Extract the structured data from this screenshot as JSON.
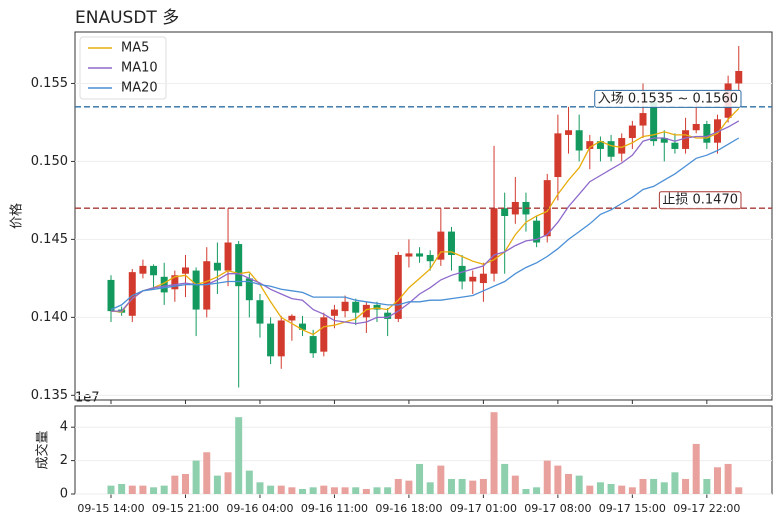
{
  "chart_data": [
    {
      "type": "candlestick",
      "title": "ENAUSDT  多",
      "ylabel": "价格",
      "categories": [
        "09-15 14:00",
        null,
        null,
        null,
        null,
        null,
        null,
        "09-15 21:00",
        null,
        null,
        null,
        null,
        null,
        null,
        "09-16 04:00",
        null,
        null,
        null,
        null,
        null,
        null,
        "09-16 11:00",
        null,
        null,
        null,
        null,
        null,
        null,
        "09-16 18:00",
        null,
        null,
        null,
        null,
        null,
        null,
        "09-17 01:00",
        null,
        null,
        null,
        null,
        null,
        null,
        "09-17 08:00",
        null,
        null,
        null,
        null,
        null,
        null,
        "09-17 15:00",
        null,
        null,
        null,
        null,
        null,
        null,
        "09-17 22:00",
        null,
        null,
        null
      ],
      "open": [
        0.1424,
        0.1405,
        0.1401,
        0.1428,
        0.1433,
        0.1426,
        0.1418,
        0.1428,
        0.143,
        0.1405,
        0.1435,
        0.143,
        0.1447,
        0.1425,
        0.1411,
        0.1396,
        0.1375,
        0.1398,
        0.1396,
        0.1388,
        0.1378,
        0.1401,
        0.1404,
        0.141,
        0.14,
        0.1408,
        0.1403,
        0.1399,
        0.1439,
        0.1441,
        0.144,
        0.1437,
        0.1455,
        0.1433,
        0.1423,
        0.1422,
        0.1428,
        0.147,
        0.1466,
        0.1474,
        0.1462,
        0.1452,
        0.149,
        0.1517,
        0.152,
        0.1508,
        0.1513,
        0.1513,
        0.1505,
        0.1515,
        0.1523,
        0.1538,
        0.1515,
        0.1512,
        0.1508,
        0.152,
        0.1524,
        0.1512,
        0.1528,
        0.155
      ],
      "high": [
        0.1427,
        0.1407,
        0.1431,
        0.1437,
        0.1434,
        0.1435,
        0.143,
        0.144,
        0.1432,
        0.1445,
        0.1448,
        0.147,
        0.1449,
        0.1428,
        0.1415,
        0.14,
        0.1401,
        0.1402,
        0.1401,
        0.1392,
        0.1403,
        0.1408,
        0.1414,
        0.1412,
        0.141,
        0.141,
        0.1406,
        0.1442,
        0.145,
        0.1445,
        0.1443,
        0.147,
        0.1458,
        0.144,
        0.143,
        0.1435,
        0.151,
        0.148,
        0.149,
        0.148,
        0.1465,
        0.1492,
        0.153,
        0.1535,
        0.153,
        0.1517,
        0.1516,
        0.1517,
        0.1518,
        0.1526,
        0.155,
        0.1542,
        0.152,
        0.1518,
        0.1528,
        0.1538,
        0.1526,
        0.153,
        0.1555,
        0.1574
      ],
      "low": [
        0.1397,
        0.1401,
        0.1397,
        0.1425,
        0.1418,
        0.1408,
        0.141,
        0.1413,
        0.1388,
        0.14,
        0.1415,
        0.142,
        0.1355,
        0.14,
        0.1387,
        0.137,
        0.1367,
        0.1385,
        0.1388,
        0.1374,
        0.1375,
        0.1393,
        0.14,
        0.1395,
        0.139,
        0.1397,
        0.1388,
        0.1397,
        0.1432,
        0.1435,
        0.143,
        0.1433,
        0.143,
        0.1418,
        0.1415,
        0.141,
        0.1423,
        0.1428,
        0.146,
        0.1455,
        0.1445,
        0.1448,
        0.1475,
        0.1505,
        0.15,
        0.1495,
        0.15,
        0.15,
        0.15,
        0.1508,
        0.1515,
        0.151,
        0.15,
        0.1505,
        0.1505,
        0.1518,
        0.1508,
        0.1505,
        0.1525,
        0.1545
      ],
      "close": [
        0.1404,
        0.1403,
        0.1429,
        0.1433,
        0.1427,
        0.1416,
        0.1427,
        0.1432,
        0.1405,
        0.1436,
        0.143,
        0.1448,
        0.142,
        0.1411,
        0.1396,
        0.1375,
        0.1398,
        0.1401,
        0.1392,
        0.1377,
        0.14,
        0.1405,
        0.141,
        0.1403,
        0.1408,
        0.1405,
        0.1399,
        0.144,
        0.1441,
        0.1439,
        0.1436,
        0.1455,
        0.144,
        0.1423,
        0.1426,
        0.1428,
        0.147,
        0.1465,
        0.1474,
        0.1466,
        0.1448,
        0.1488,
        0.1518,
        0.152,
        0.1507,
        0.1513,
        0.1508,
        0.1503,
        0.1515,
        0.1523,
        0.1531,
        0.1513,
        0.1512,
        0.1508,
        0.152,
        0.1524,
        0.1512,
        0.1527,
        0.155,
        0.1558
      ],
      "up_color": "#d23a2e",
      "down_color": "#13995e",
      "series": [
        {
          "name": "MA5",
          "color": "#e8ad0c",
          "values": [
            0.1404,
            0.14035,
            0.1412,
            0.1417,
            0.1419,
            0.1422,
            0.1426,
            0.1427,
            0.1421,
            0.1423,
            0.1426,
            0.143,
            0.1428,
            0.1429,
            0.1421,
            0.141,
            0.14,
            0.1396,
            0.1392,
            0.1389,
            0.1394,
            0.1395,
            0.1397,
            0.1399,
            0.1405,
            0.1406,
            0.1405,
            0.1411,
            0.1419,
            0.1425,
            0.1431,
            0.1442,
            0.1442,
            0.1439,
            0.1436,
            0.1434,
            0.1437,
            0.1442,
            0.1453,
            0.1461,
            0.1465,
            0.1468,
            0.1479,
            0.1488,
            0.1496,
            0.1509,
            0.1513,
            0.151,
            0.1509,
            0.1512,
            0.1516,
            0.1517,
            0.1519,
            0.1517,
            0.1517,
            0.1515,
            0.1515,
            0.1518,
            0.1527,
            0.1534
          ]
        },
        {
          "name": "MA10",
          "color": "#8e6acb",
          "values": [
            0.1404,
            0.1404,
            0.1412,
            0.1417,
            0.1419,
            0.142,
            0.1421,
            0.1422,
            0.1421,
            0.1421,
            0.1424,
            0.1428,
            0.1428,
            0.1425,
            0.1422,
            0.1418,
            0.1415,
            0.1412,
            0.1411,
            0.1405,
            0.1402,
            0.1398,
            0.1397,
            0.1396,
            0.1397,
            0.14,
            0.14,
            0.1404,
            0.1409,
            0.1415,
            0.1419,
            0.1424,
            0.1427,
            0.1429,
            0.1431,
            0.1433,
            0.144,
            0.1442,
            0.1446,
            0.1449,
            0.145,
            0.1453,
            0.1461,
            0.1471,
            0.1479,
            0.1487,
            0.1491,
            0.1495,
            0.1499,
            0.1504,
            0.1513,
            0.1515,
            0.1515,
            0.1513,
            0.1515,
            0.1516,
            0.1516,
            0.1519,
            0.1522,
            0.1526
          ]
        },
        {
          "name": "MA20",
          "color": "#4a8fd6",
          "values": [
            0.1405,
            0.1408,
            0.1414,
            0.1417,
            0.1418,
            0.1419,
            0.142,
            0.1421,
            0.1421,
            0.1421,
            0.1422,
            0.1423,
            0.1423,
            0.1423,
            0.1421,
            0.142,
            0.1418,
            0.1417,
            0.1416,
            0.1413,
            0.1413,
            0.1413,
            0.1413,
            0.1411,
            0.141,
            0.1409,
            0.1408,
            0.1408,
            0.141,
            0.141,
            0.1411,
            0.1411,
            0.1412,
            0.1413,
            0.1414,
            0.1417,
            0.142,
            0.1423,
            0.1428,
            0.1432,
            0.1435,
            0.1439,
            0.1444,
            0.145,
            0.1455,
            0.146,
            0.1466,
            0.1469,
            0.1473,
            0.1477,
            0.1482,
            0.1484,
            0.1488,
            0.1492,
            0.1497,
            0.1502,
            0.1504,
            0.1507,
            0.1511,
            0.1515
          ]
        }
      ],
      "annotations": [
        {
          "label": "入场 0.1535 ~ 0.1560",
          "value": 0.1535,
          "color": "#2e6da4"
        },
        {
          "label": "止损 0.1470",
          "value": 0.147,
          "color": "#a83a36"
        }
      ],
      "ylim": [
        0.1347,
        0.1583
      ],
      "yticks": [
        0.135,
        {
          "value": 0.14,
          "label": "0.140"
        },
        0.145,
        {
          "value": 0.15,
          "label": "0.150"
        },
        0.155
      ],
      "grid": true,
      "legend": "upper left"
    },
    {
      "type": "bar",
      "ylabel": "成交量",
      "unit_label": "1e7",
      "values": [
        0.5,
        0.6,
        0.5,
        0.5,
        0.4,
        0.5,
        1.1,
        1.2,
        2.0,
        2.5,
        1.1,
        1.3,
        4.6,
        1.4,
        0.7,
        0.5,
        0.5,
        0.4,
        0.3,
        0.4,
        0.5,
        0.4,
        0.4,
        0.4,
        0.3,
        0.4,
        0.4,
        0.9,
        0.8,
        1.8,
        0.7,
        1.7,
        0.9,
        0.9,
        0.8,
        0.9,
        4.9,
        1.8,
        1.1,
        0.3,
        0.4,
        2.0,
        1.7,
        1.2,
        1.1,
        0.5,
        0.7,
        0.6,
        0.5,
        0.4,
        0.9,
        0.9,
        0.7,
        1.3,
        0.9,
        3.0,
        0.9,
        1.6,
        1.8,
        0.4
      ],
      "up_color": "#e8a19c",
      "down_color": "#8ecfae",
      "ylim": [
        0,
        5.27
      ],
      "yticks": [
        0,
        2,
        4
      ],
      "grid": true
    }
  ]
}
